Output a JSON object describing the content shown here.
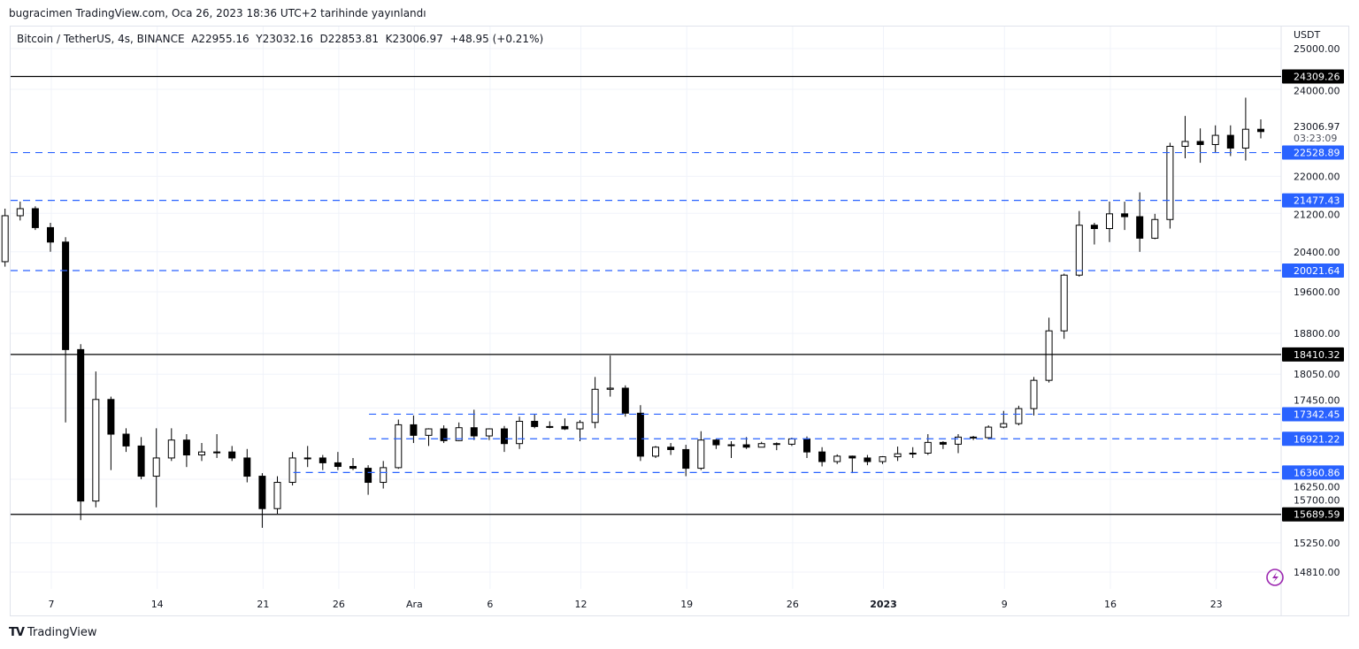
{
  "header": {
    "published": "bugracimen TradingView.com, Oca 26, 2023 18:36 UTC+2 tarihinde yayınlandı",
    "legend": "Bitcoin / TetherUS, 4s, BINANCE  A22955.16  Y23032.16  D22853.81  K23006.97  +48.95 (+0.21%)"
  },
  "footer": {
    "brand": "TradingView"
  },
  "chart_data": {
    "type": "candlestick",
    "symbol": "Bitcoin / TetherUS",
    "interval": "4s",
    "exchange": "BINANCE",
    "currency": "USDT",
    "y_scale": "log",
    "ylim": [
      14600,
      25300
    ],
    "grid": true,
    "last_price": "23006.97",
    "countdown": "03:23:09",
    "y_ticks": [
      "25000.00",
      "24000.00",
      "22000.00",
      "21200.00",
      "20400.00",
      "19600.00",
      "18800.00",
      "18050.00",
      "17450.00",
      "16250.00",
      "15700.00",
      "15250.00",
      "14810.00"
    ],
    "x_ticks": [
      {
        "date": "2022-11-07",
        "label": "7"
      },
      {
        "date": "2022-11-14",
        "label": "14"
      },
      {
        "date": "2022-11-21",
        "label": "21"
      },
      {
        "date": "2022-11-26",
        "label": "26"
      },
      {
        "date": "2022-12-01",
        "label": "Ara"
      },
      {
        "date": "2022-12-06",
        "label": "6"
      },
      {
        "date": "2022-12-12",
        "label": "12"
      },
      {
        "date": "2022-12-19",
        "label": "19"
      },
      {
        "date": "2022-12-26",
        "label": "26"
      },
      {
        "date": "2023-01-01",
        "label": "2023",
        "bold": true
      },
      {
        "date": "2023-01-09",
        "label": "9"
      },
      {
        "date": "2023-01-16",
        "label": "16"
      },
      {
        "date": "2023-01-23",
        "label": "23"
      }
    ],
    "levels": [
      {
        "price": 24309.26,
        "label": "24309.26",
        "style": "solid",
        "color": "#000000",
        "from": "2022-11-04"
      },
      {
        "price": 22528.89,
        "label": "22528.89",
        "style": "dashed",
        "color": "#2962ff",
        "from": "2022-11-04"
      },
      {
        "price": 21477.43,
        "label": "21477.43",
        "style": "dashed",
        "color": "#2962ff",
        "from": "2022-11-04"
      },
      {
        "price": 20021.64,
        "label": "20021.64",
        "style": "dashed",
        "color": "#2962ff",
        "from": "2022-11-04"
      },
      {
        "price": 18410.32,
        "label": "18410.32",
        "style": "solid",
        "color": "#000000",
        "from": "2022-11-04"
      },
      {
        "price": 17342.45,
        "label": "17342.45",
        "style": "dashed",
        "color": "#2962ff",
        "from": "2022-11-28"
      },
      {
        "price": 16921.22,
        "label": "16921.22",
        "style": "dashed",
        "color": "#2962ff",
        "from": "2022-11-28"
      },
      {
        "price": 16360.86,
        "label": "16360.86",
        "style": "dashed",
        "color": "#2962ff",
        "from": "2022-11-23"
      },
      {
        "price": 15689.59,
        "label": "15689.59",
        "style": "solid",
        "color": "#000000",
        "from": "2022-11-04"
      }
    ],
    "candles_daily_ohlc": [
      [
        "2022-11-04",
        20200,
        21300,
        20100,
        21150
      ],
      [
        "2022-11-05",
        21150,
        21450,
        21050,
        21300
      ],
      [
        "2022-11-06",
        21300,
        21350,
        20850,
        20900
      ],
      [
        "2022-11-07",
        20900,
        21000,
        20400,
        20600
      ],
      [
        "2022-11-08",
        20600,
        20700,
        17200,
        18500
      ],
      [
        "2022-11-09",
        18500,
        18600,
        15600,
        15900
      ],
      [
        "2022-11-10",
        15900,
        18100,
        15800,
        17600
      ],
      [
        "2022-11-11",
        17600,
        17650,
        16400,
        17000
      ],
      [
        "2022-11-12",
        17000,
        17100,
        16700,
        16800
      ],
      [
        "2022-11-13",
        16800,
        16950,
        16250,
        16300
      ],
      [
        "2022-11-14",
        16300,
        17100,
        15800,
        16600
      ],
      [
        "2022-11-15",
        16600,
        17100,
        16550,
        16900
      ],
      [
        "2022-11-16",
        16900,
        17000,
        16450,
        16650
      ],
      [
        "2022-11-17",
        16650,
        16850,
        16550,
        16700
      ],
      [
        "2022-11-18",
        16700,
        17000,
        16600,
        16700
      ],
      [
        "2022-11-19",
        16700,
        16800,
        16550,
        16600
      ],
      [
        "2022-11-20",
        16600,
        16750,
        16200,
        16300
      ],
      [
        "2022-11-21",
        16300,
        16350,
        15480,
        15780
      ],
      [
        "2022-11-22",
        15780,
        16300,
        15700,
        16200
      ],
      [
        "2022-11-23",
        16200,
        16700,
        16150,
        16600
      ],
      [
        "2022-11-24",
        16600,
        16800,
        16450,
        16600
      ],
      [
        "2022-11-25",
        16600,
        16650,
        16400,
        16520
      ],
      [
        "2022-11-26",
        16520,
        16700,
        16400,
        16460
      ],
      [
        "2022-11-27",
        16460,
        16600,
        16400,
        16430
      ],
      [
        "2022-11-28",
        16430,
        16480,
        16000,
        16200
      ],
      [
        "2022-11-29",
        16200,
        16550,
        16100,
        16440
      ],
      [
        "2022-11-30",
        16440,
        17250,
        16420,
        17160
      ],
      [
        "2022-12-01",
        17160,
        17320,
        16850,
        16980
      ],
      [
        "2022-12-02",
        16980,
        17100,
        16800,
        17090
      ],
      [
        "2022-12-03",
        17090,
        17150,
        16850,
        16890
      ],
      [
        "2022-12-04",
        16890,
        17200,
        16880,
        17110
      ],
      [
        "2022-12-05",
        17110,
        17420,
        16900,
        16970
      ],
      [
        "2022-12-06",
        16970,
        17100,
        16900,
        17090
      ],
      [
        "2022-12-07",
        17090,
        17140,
        16700,
        16840
      ],
      [
        "2022-12-08",
        16840,
        17300,
        16750,
        17220
      ],
      [
        "2022-12-09",
        17220,
        17350,
        17100,
        17130
      ],
      [
        "2022-12-10",
        17130,
        17220,
        17100,
        17130
      ],
      [
        "2022-12-11",
        17130,
        17270,
        17070,
        17090
      ],
      [
        "2022-12-12",
        17090,
        17240,
        16880,
        17200
      ],
      [
        "2022-12-13",
        17200,
        18000,
        17100,
        17780
      ],
      [
        "2022-12-14",
        17780,
        18390,
        17650,
        17800
      ],
      [
        "2022-12-15",
        17800,
        17850,
        17300,
        17360
      ],
      [
        "2022-12-16",
        17360,
        17500,
        16550,
        16630
      ],
      [
        "2022-12-17",
        16630,
        16800,
        16600,
        16780
      ],
      [
        "2022-12-18",
        16780,
        16850,
        16650,
        16740
      ],
      [
        "2022-12-19",
        16740,
        16820,
        16300,
        16430
      ],
      [
        "2022-12-20",
        16430,
        17050,
        16400,
        16900
      ],
      [
        "2022-12-21",
        16900,
        16920,
        16750,
        16820
      ],
      [
        "2022-12-22",
        16820,
        16880,
        16600,
        16820
      ],
      [
        "2022-12-23",
        16820,
        16950,
        16750,
        16780
      ],
      [
        "2022-12-24",
        16780,
        16870,
        16780,
        16840
      ],
      [
        "2022-12-25",
        16840,
        16860,
        16730,
        16830
      ],
      [
        "2022-12-26",
        16830,
        16940,
        16800,
        16920
      ],
      [
        "2022-12-27",
        16920,
        16960,
        16600,
        16700
      ],
      [
        "2022-12-28",
        16700,
        16780,
        16460,
        16540
      ],
      [
        "2022-12-29",
        16540,
        16660,
        16500,
        16630
      ],
      [
        "2022-12-30",
        16630,
        16640,
        16350,
        16600
      ],
      [
        "2022-12-31",
        16600,
        16650,
        16480,
        16540
      ],
      [
        "2023-01-01",
        16540,
        16630,
        16500,
        16620
      ],
      [
        "2023-01-02",
        16620,
        16790,
        16550,
        16670
      ],
      [
        "2023-01-03",
        16670,
        16780,
        16600,
        16680
      ],
      [
        "2023-01-04",
        16680,
        17000,
        16650,
        16860
      ],
      [
        "2023-01-05",
        16860,
        16880,
        16750,
        16830
      ],
      [
        "2023-01-06",
        16830,
        17000,
        16680,
        16950
      ],
      [
        "2023-01-07",
        16950,
        16970,
        16900,
        16940
      ],
      [
        "2023-01-08",
        16940,
        17150,
        16910,
        17120
      ],
      [
        "2023-01-09",
        17120,
        17400,
        17100,
        17180
      ],
      [
        "2023-01-10",
        17180,
        17490,
        17150,
        17440
      ],
      [
        "2023-01-11",
        17440,
        18000,
        17320,
        17940
      ],
      [
        "2023-01-12",
        17940,
        19100,
        17900,
        18850
      ],
      [
        "2023-01-13",
        18850,
        19960,
        18700,
        19930
      ],
      [
        "2023-01-14",
        19930,
        21250,
        19900,
        20950
      ],
      [
        "2023-01-15",
        20950,
        21000,
        20550,
        20880
      ],
      [
        "2023-01-16",
        20880,
        21450,
        20600,
        21190
      ],
      [
        "2023-01-17",
        21190,
        21450,
        20850,
        21130
      ],
      [
        "2023-01-18",
        21130,
        21650,
        20400,
        20680
      ],
      [
        "2023-01-19",
        20680,
        21190,
        20660,
        21070
      ],
      [
        "2023-01-20",
        21070,
        22750,
        20880,
        22670
      ],
      [
        "2023-01-21",
        22670,
        23370,
        22400,
        22780
      ],
      [
        "2023-01-22",
        22780,
        23080,
        22300,
        22710
      ],
      [
        "2023-01-23",
        22710,
        23150,
        22520,
        22920
      ],
      [
        "2023-01-24",
        22920,
        23150,
        22450,
        22630
      ],
      [
        "2023-01-25",
        22630,
        23800,
        22350,
        23060
      ],
      [
        "2023-01-26",
        23060,
        23290,
        22850,
        23006.97
      ]
    ],
    "colors": {
      "up_body": "#ffffff",
      "down_body": "#000000",
      "wick": "#000000",
      "level_blue": "#2962ff",
      "level_black": "#000000",
      "grid": "#f0f3fa",
      "alert_icon": "#9c27b0"
    }
  }
}
